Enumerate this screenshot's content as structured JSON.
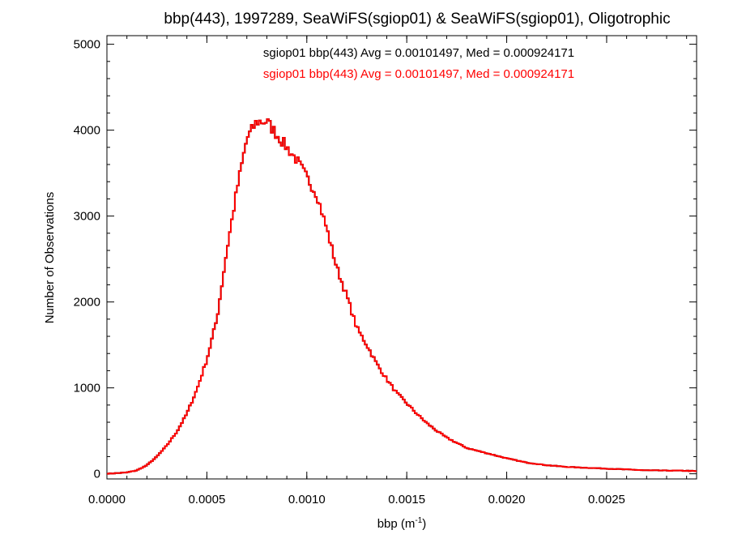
{
  "chart_data": {
    "type": "histogram",
    "title": "bbp(443), 1997289, SeaWiFS(sgiop01) & SeaWiFS(sgiop01), Oligotrophic",
    "xlabel": {
      "main": "bbp (m",
      "sup": "-1",
      "close": ")"
    },
    "ylabel": "Number of Observations",
    "xlim": [
      0.0,
      0.00295
    ],
    "ylim": [
      -60,
      5100
    ],
    "x_ticks": [
      {
        "value": 0.0,
        "label": "0.0000"
      },
      {
        "value": 0.0005,
        "label": "0.0005"
      },
      {
        "value": 0.001,
        "label": "0.0010"
      },
      {
        "value": 0.0015,
        "label": "0.0015"
      },
      {
        "value": 0.002,
        "label": "0.0020"
      },
      {
        "value": 0.0025,
        "label": "0.0025"
      }
    ],
    "y_ticks": [
      {
        "value": 0,
        "label": "0"
      },
      {
        "value": 1000,
        "label": "1000"
      },
      {
        "value": 2000,
        "label": "2000"
      },
      {
        "value": 3000,
        "label": "3000"
      },
      {
        "value": 4000,
        "label": "4000"
      },
      {
        "value": 5000,
        "label": "5000"
      }
    ],
    "legend": [
      {
        "text": "sgiop01 bbp(443) Avg = 0.00101497, Med = 0.000924171",
        "color": "#000000"
      },
      {
        "text": "sgiop01 bbp(443) Avg = 0.00101497, Med = 0.000924171",
        "color": "#ff0000"
      }
    ],
    "series_colors": [
      "#000000",
      "#ff0000"
    ],
    "curve_points": [
      [
        0.0,
        0
      ],
      [
        0.0001,
        15
      ],
      [
        0.00015,
        40
      ],
      [
        0.0002,
        100
      ],
      [
        0.00025,
        200
      ],
      [
        0.0003,
        330
      ],
      [
        0.00035,
        490
      ],
      [
        0.0004,
        700
      ],
      [
        0.00045,
        980
      ],
      [
        0.0005,
        1330
      ],
      [
        0.00055,
        1800
      ],
      [
        0.0006,
        2600
      ],
      [
        0.00065,
        3300
      ],
      [
        0.0007,
        3900
      ],
      [
        0.00075,
        4100
      ],
      [
        0.0008,
        4100
      ],
      [
        0.00085,
        3950
      ],
      [
        0.0009,
        3800
      ],
      [
        0.00095,
        3650
      ],
      [
        0.001,
        3450
      ],
      [
        0.00105,
        3250
      ],
      [
        0.0011,
        2850
      ],
      [
        0.00115,
        2400
      ],
      [
        0.0012,
        2070
      ],
      [
        0.00125,
        1700
      ],
      [
        0.0013,
        1500
      ],
      [
        0.00135,
        1280
      ],
      [
        0.0014,
        1100
      ],
      [
        0.00145,
        940
      ],
      [
        0.0015,
        820
      ],
      [
        0.00155,
        700
      ],
      [
        0.0016,
        590
      ],
      [
        0.00165,
        500
      ],
      [
        0.0017,
        420
      ],
      [
        0.00175,
        360
      ],
      [
        0.0018,
        300
      ],
      [
        0.0019,
        240
      ],
      [
        0.002,
        180
      ],
      [
        0.0021,
        130
      ],
      [
        0.0022,
        100
      ],
      [
        0.0023,
        80
      ],
      [
        0.0025,
        60
      ],
      [
        0.0027,
        40
      ],
      [
        0.0029,
        35
      ],
      [
        0.00295,
        30
      ]
    ],
    "bin_width": 1e-05
  }
}
